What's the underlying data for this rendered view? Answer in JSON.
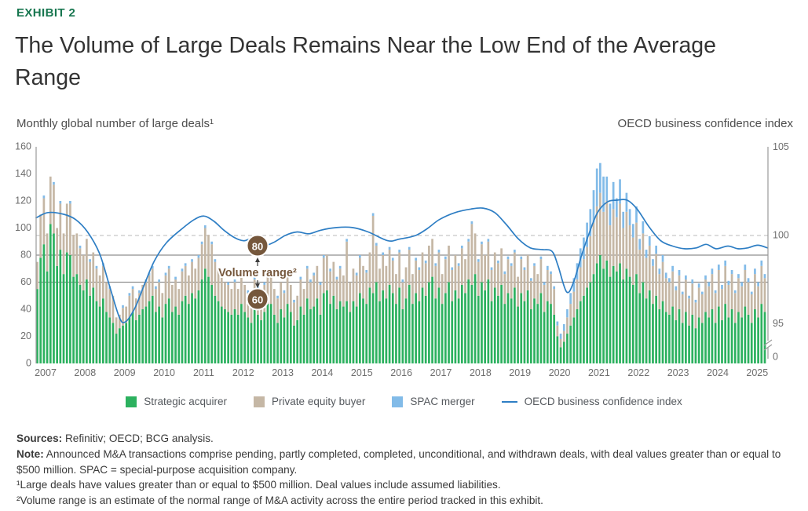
{
  "exhibit_label": "EXHIBIT 2",
  "title": "The Volume of Large Deals Remains Near the Low End of the Average Range",
  "left_axis_title": "Monthly global number of large deals¹",
  "right_axis_title": "OECD business confidence index",
  "annotation": {
    "top_value": "80",
    "bottom_value": "60",
    "label": "Volume range²"
  },
  "legend": [
    {
      "label": "Strategic acquirer",
      "color": "#2CB15F",
      "type": "swatch"
    },
    {
      "label": "Private equity buyer",
      "color": "#C5B7A5",
      "type": "swatch"
    },
    {
      "label": "SPAC merger",
      "color": "#82BBE8",
      "type": "swatch"
    },
    {
      "label": "OECD business confidence index",
      "color": "#2E7EC4",
      "type": "line"
    }
  ],
  "footer": {
    "sources_bold": "Sources:",
    "sources_text": " Refinitiv; OECD; BCG analysis.",
    "note_bold": "Note:",
    "note_text": " Announced M&A transactions comprise pending, partly completed, completed, unconditional, and withdrawn deals, with deal values greater than or equal to $500 million. SPAC = special-purpose acquisition company.",
    "footnote1": "¹Large deals have values greater than or equal to $500 million. Deal values include assumed liabilities.",
    "footnote2": "²Volume range is an estimate of the normal range of M&A activity across the entire period tracked in this exhibit."
  },
  "colors": {
    "exhibit_green": "#17764F",
    "bar_green": "#2CB15F",
    "bar_tan": "#C5B7A5",
    "bar_blue": "#82BBE8",
    "line_blue": "#2E7EC4",
    "annotation_brown": "#75573C",
    "grid_solid": "#8f8f8f",
    "grid_dashed": "#c8c8c8",
    "axis_text": "#6e6e6e"
  },
  "chart_data": {
    "type": "bar",
    "subtype": "stacked-monthly-bars-with-line-overlay",
    "start_month": "2007-01",
    "end_month": "2025-06",
    "x_years": [
      2007,
      2008,
      2009,
      2010,
      2011,
      2012,
      2013,
      2014,
      2015,
      2016,
      2017,
      2018,
      2019,
      2020,
      2021,
      2022,
      2023,
      2024,
      2025
    ],
    "left_axis": {
      "label": "Monthly global number of large deals¹",
      "ticks": [
        0,
        20,
        40,
        60,
        80,
        100,
        120,
        140,
        160
      ],
      "lim": [
        0,
        160
      ]
    },
    "right_axis": {
      "label": "OECD business confidence index",
      "ticks": [
        105,
        100,
        95,
        0
      ],
      "lim_visible": [
        95,
        105
      ],
      "axis_break_between": [
        95,
        0
      ]
    },
    "reference_lines": {
      "dashed_at_right_value": 100,
      "solid_at_left_values": [
        80,
        60
      ],
      "volume_range": [
        60,
        80
      ]
    },
    "grid": false,
    "legend_position": "bottom-center",
    "series": [
      {
        "name": "Strategic acquirer",
        "color": "#2CB15F",
        "values": [
          55,
          78,
          88,
          68,
          103,
          96,
          72,
          84,
          66,
          82,
          80,
          64,
          66,
          58,
          54,
          62,
          50,
          56,
          46,
          42,
          48,
          38,
          34,
          30,
          22,
          26,
          28,
          30,
          34,
          38,
          32,
          36,
          40,
          42,
          46,
          50,
          38,
          42,
          34,
          44,
          48,
          38,
          42,
          36,
          46,
          50,
          44,
          52,
          48,
          54,
          62,
          70,
          64,
          58,
          50,
          46,
          42,
          40,
          38,
          36,
          40,
          36,
          44,
          38,
          34,
          30,
          42,
          36,
          32,
          38,
          44,
          44,
          36,
          30,
          40,
          34,
          44,
          38,
          28,
          32,
          42,
          36,
          48,
          40,
          42,
          48,
          36,
          52,
          54,
          44,
          50,
          40,
          46,
          42,
          46,
          38,
          46,
          42,
          52,
          48,
          44,
          56,
          52,
          60,
          46,
          54,
          48,
          58,
          52,
          44,
          56,
          40,
          48,
          58,
          44,
          52,
          46,
          56,
          50,
          60,
          64,
          48,
          56,
          44,
          52,
          60,
          46,
          54,
          48,
          58,
          52,
          62,
          58,
          66,
          50,
          60,
          54,
          62,
          46,
          56,
          50,
          58,
          44,
          52,
          48,
          56,
          42,
          52,
          46,
          54,
          40,
          48,
          44,
          52,
          38,
          46,
          44,
          36,
          20,
          12,
          16,
          22,
          28,
          34,
          40,
          46,
          50,
          56,
          60,
          66,
          74,
          80,
          70,
          76,
          64,
          72,
          68,
          74,
          62,
          70,
          64,
          58,
          66,
          52,
          60,
          48,
          54,
          44,
          50,
          40,
          46,
          38,
          36,
          42,
          32,
          40,
          30,
          38,
          28,
          36,
          26,
          34,
          30,
          38,
          34,
          40,
          30,
          42,
          32,
          44,
          34,
          40,
          30,
          38,
          34,
          42,
          36,
          30,
          40,
          34,
          44,
          38
        ]
      },
      {
        "name": "Private equity buyer",
        "color": "#C5B7A5",
        "values": [
          20,
          32,
          34,
          28,
          35,
          36,
          28,
          34,
          30,
          36,
          38,
          31,
          30,
          27,
          26,
          30,
          25,
          26,
          24,
          23,
          24,
          22,
          21,
          20,
          12,
          10,
          13,
          12,
          16,
          17,
          16,
          16,
          18,
          18,
          19,
          20,
          17,
          18,
          18,
          21,
          22,
          20,
          20,
          19,
          22,
          22,
          21,
          23,
          22,
          24,
          26,
          30,
          31,
          30,
          25,
          24,
          23,
          20,
          20,
          19,
          20,
          19,
          21,
          20,
          18,
          18,
          20,
          19,
          18,
          20,
          21,
          21,
          19,
          18,
          20,
          18,
          21,
          20,
          17,
          18,
          20,
          19,
          22,
          20,
          23,
          24,
          22,
          26,
          26,
          24,
          25,
          22,
          24,
          23,
          44,
          22,
          24,
          23,
          26,
          24,
          23,
          26,
          57,
          27,
          24,
          26,
          24,
          26,
          24,
          22,
          26,
          20,
          23,
          26,
          22,
          24,
          23,
          26,
          24,
          27,
          28,
          24,
          26,
          22,
          25,
          27,
          23,
          26,
          24,
          27,
          25,
          28,
          45,
          30,
          25,
          28,
          26,
          28,
          23,
          26,
          24,
          27,
          22,
          25,
          24,
          26,
          22,
          25,
          23,
          26,
          21,
          24,
          22,
          25,
          20,
          23,
          22,
          19,
          8,
          6,
          8,
          12,
          16,
          19,
          22,
          25,
          27,
          30,
          34,
          38,
          42,
          46,
          42,
          44,
          38,
          42,
          40,
          44,
          38,
          42,
          38,
          35,
          38,
          32,
          36,
          30,
          33,
          28,
          31,
          26,
          29,
          25,
          24,
          26,
          22,
          25,
          21,
          24,
          20,
          23,
          19,
          22,
          21,
          24,
          23,
          26,
          22,
          27,
          23,
          28,
          24,
          26,
          22,
          25,
          23,
          27,
          24,
          21,
          26,
          23,
          28,
          25
        ]
      },
      {
        "name": "SPAC merger",
        "color": "#82BBE8",
        "values": [
          0,
          0,
          2,
          0,
          0,
          2,
          0,
          2,
          0,
          0,
          2,
          0,
          0,
          2,
          0,
          0,
          2,
          0,
          2,
          0,
          2,
          0,
          2,
          0,
          0,
          0,
          2,
          0,
          2,
          2,
          0,
          2,
          0,
          2,
          2,
          2,
          2,
          2,
          0,
          2,
          2,
          0,
          2,
          0,
          2,
          2,
          0,
          2,
          0,
          2,
          2,
          2,
          0,
          2,
          2,
          0,
          2,
          0,
          2,
          0,
          2,
          0,
          2,
          0,
          2,
          0,
          2,
          2,
          0,
          2,
          2,
          0,
          0,
          2,
          0,
          2,
          2,
          0,
          2,
          0,
          2,
          0,
          2,
          2,
          2,
          0,
          2,
          2,
          0,
          2,
          0,
          2,
          2,
          0,
          2,
          0,
          0,
          2,
          2,
          0,
          2,
          0,
          2,
          2,
          0,
          2,
          0,
          2,
          2,
          0,
          2,
          2,
          0,
          2,
          0,
          2,
          2,
          0,
          2,
          0,
          0,
          2,
          2,
          0,
          2,
          0,
          2,
          0,
          2,
          2,
          0,
          2,
          2,
          0,
          2,
          2,
          0,
          2,
          2,
          0,
          2,
          0,
          2,
          2,
          2,
          2,
          0,
          2,
          2,
          0,
          2,
          2,
          0,
          2,
          2,
          3,
          2,
          2,
          3,
          4,
          5,
          6,
          8,
          10,
          12,
          14,
          16,
          18,
          20,
          24,
          28,
          22,
          26,
          18,
          16,
          20,
          14,
          18,
          12,
          14,
          12,
          10,
          12,
          8,
          9,
          6,
          7,
          5,
          6,
          4,
          5,
          4,
          3,
          4,
          3,
          4,
          2,
          3,
          2,
          3,
          2,
          3,
          2,
          3,
          3,
          4,
          2,
          4,
          3,
          4,
          3,
          3,
          2,
          3,
          3,
          4,
          3,
          2,
          4,
          3,
          4,
          3
        ]
      }
    ],
    "line": {
      "name": "OECD business confidence index",
      "color": "#2E7EC4",
      "anchors": [
        [
          2007.0,
          101.0
        ],
        [
          2007.3,
          101.3
        ],
        [
          2007.7,
          101.2
        ],
        [
          2008.0,
          100.9
        ],
        [
          2008.3,
          100.2
        ],
        [
          2008.6,
          99.0
        ],
        [
          2008.85,
          97.2
        ],
        [
          2009.1,
          95.4
        ],
        [
          2009.25,
          95.1
        ],
        [
          2009.5,
          95.9
        ],
        [
          2009.75,
          97.3
        ],
        [
          2010.0,
          98.6
        ],
        [
          2010.3,
          99.6
        ],
        [
          2010.7,
          100.4
        ],
        [
          2011.0,
          100.9
        ],
        [
          2011.25,
          101.1
        ],
        [
          2011.5,
          100.8
        ],
        [
          2011.75,
          100.3
        ],
        [
          2012.0,
          99.9
        ],
        [
          2012.25,
          99.7
        ],
        [
          2012.45,
          99.8
        ],
        [
          2012.7,
          99.4
        ],
        [
          2013.0,
          99.6
        ],
        [
          2013.3,
          100.0
        ],
        [
          2013.6,
          100.2
        ],
        [
          2013.9,
          100.1
        ],
        [
          2014.2,
          100.3
        ],
        [
          2014.6,
          100.45
        ],
        [
          2015.0,
          100.45
        ],
        [
          2015.4,
          100.2
        ],
        [
          2015.9,
          99.7
        ],
        [
          2016.2,
          99.8
        ],
        [
          2016.6,
          100.0
        ],
        [
          2016.9,
          100.4
        ],
        [
          2017.2,
          100.9
        ],
        [
          2017.6,
          101.3
        ],
        [
          2018.0,
          101.5
        ],
        [
          2018.3,
          101.55
        ],
        [
          2018.6,
          101.3
        ],
        [
          2018.9,
          100.6
        ],
        [
          2019.2,
          99.8
        ],
        [
          2019.5,
          99.3
        ],
        [
          2019.8,
          99.2
        ],
        [
          2020.05,
          99.1
        ],
        [
          2020.2,
          98.3
        ],
        [
          2020.42,
          96.8
        ],
        [
          2020.6,
          97.4
        ],
        [
          2020.8,
          98.9
        ],
        [
          2021.0,
          100.2
        ],
        [
          2021.2,
          101.3
        ],
        [
          2021.45,
          101.9
        ],
        [
          2021.7,
          102.0
        ],
        [
          2021.95,
          102.0
        ],
        [
          2022.2,
          101.5
        ],
        [
          2022.5,
          100.5
        ],
        [
          2022.8,
          99.7
        ],
        [
          2023.1,
          99.4
        ],
        [
          2023.4,
          99.25
        ],
        [
          2023.7,
          99.3
        ],
        [
          2023.95,
          99.5
        ],
        [
          2024.2,
          99.25
        ],
        [
          2024.5,
          99.4
        ],
        [
          2024.75,
          99.25
        ],
        [
          2025.0,
          99.3
        ],
        [
          2025.25,
          99.45
        ],
        [
          2025.5,
          99.3
        ]
      ]
    }
  }
}
